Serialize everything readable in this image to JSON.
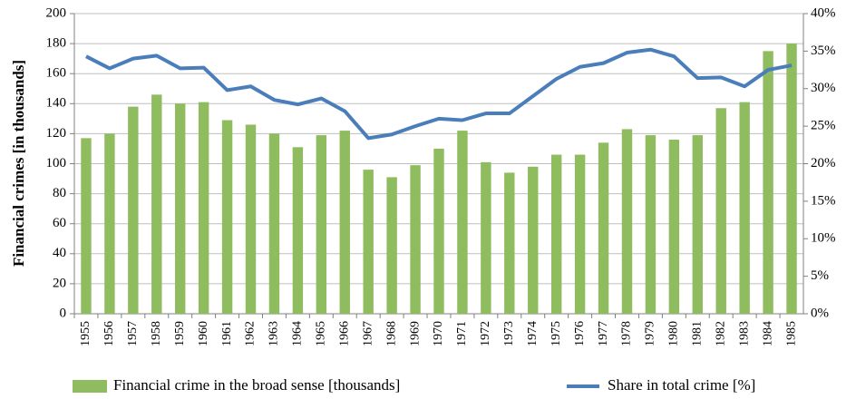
{
  "chart_data": {
    "type": "bar_line",
    "y_label": "Financial crimes [in thousands]",
    "categories": [
      "1955",
      "1956",
      "1957",
      "1958",
      "1959",
      "1960",
      "1961",
      "1962",
      "1963",
      "1964",
      "1965",
      "1966",
      "1967",
      "1968",
      "1969",
      "1970",
      "1971",
      "1972",
      "1973",
      "1974",
      "1975",
      "1976",
      "1977",
      "1978",
      "1979",
      "1980",
      "1981",
      "1982",
      "1983",
      "1984",
      "1985"
    ],
    "series": [
      {
        "name": "Financial crime in the broad sense [thousands]",
        "color": "#8fbc5f",
        "kind": "bar",
        "values": [
          117,
          120,
          138,
          146,
          140,
          141,
          129,
          126,
          120,
          111,
          119,
          122,
          96,
          91,
          99,
          110,
          122,
          101,
          94,
          98,
          106,
          106,
          114,
          123,
          119,
          116,
          119,
          137,
          141,
          175,
          180
        ]
      },
      {
        "name": "Share in total crime [%]",
        "color": "#4a7ebb",
        "kind": "line",
        "axis": "y2",
        "values": [
          34.3,
          32.7,
          34.0,
          34.4,
          32.7,
          32.8,
          29.8,
          30.3,
          28.5,
          27.9,
          28.7,
          27.0,
          23.4,
          23.9,
          25.0,
          26.0,
          25.8,
          26.7,
          26.7,
          29.0,
          31.3,
          32.9,
          33.4,
          34.8,
          35.2,
          34.3,
          31.4,
          31.5,
          30.3,
          32.5,
          33.1
        ]
      }
    ],
    "ylim": [
      0,
      200
    ],
    "yticks": [
      0,
      20,
      40,
      60,
      80,
      100,
      120,
      140,
      160,
      180,
      200
    ],
    "y2lim": [
      0,
      40
    ],
    "y2ticks": [
      {
        "value": 0,
        "label": "0%"
      },
      {
        "value": 5,
        "label": "5%"
      },
      {
        "value": 10,
        "label": "10%"
      },
      {
        "value": 15,
        "label": "15%"
      },
      {
        "value": 20,
        "label": "20%"
      },
      {
        "value": 25,
        "label": "25%"
      },
      {
        "value": 30,
        "label": "30%"
      },
      {
        "value": 35,
        "label": "35%"
      },
      {
        "value": 40,
        "label": "40%"
      }
    ],
    "grid": true,
    "legend": "bottom"
  }
}
